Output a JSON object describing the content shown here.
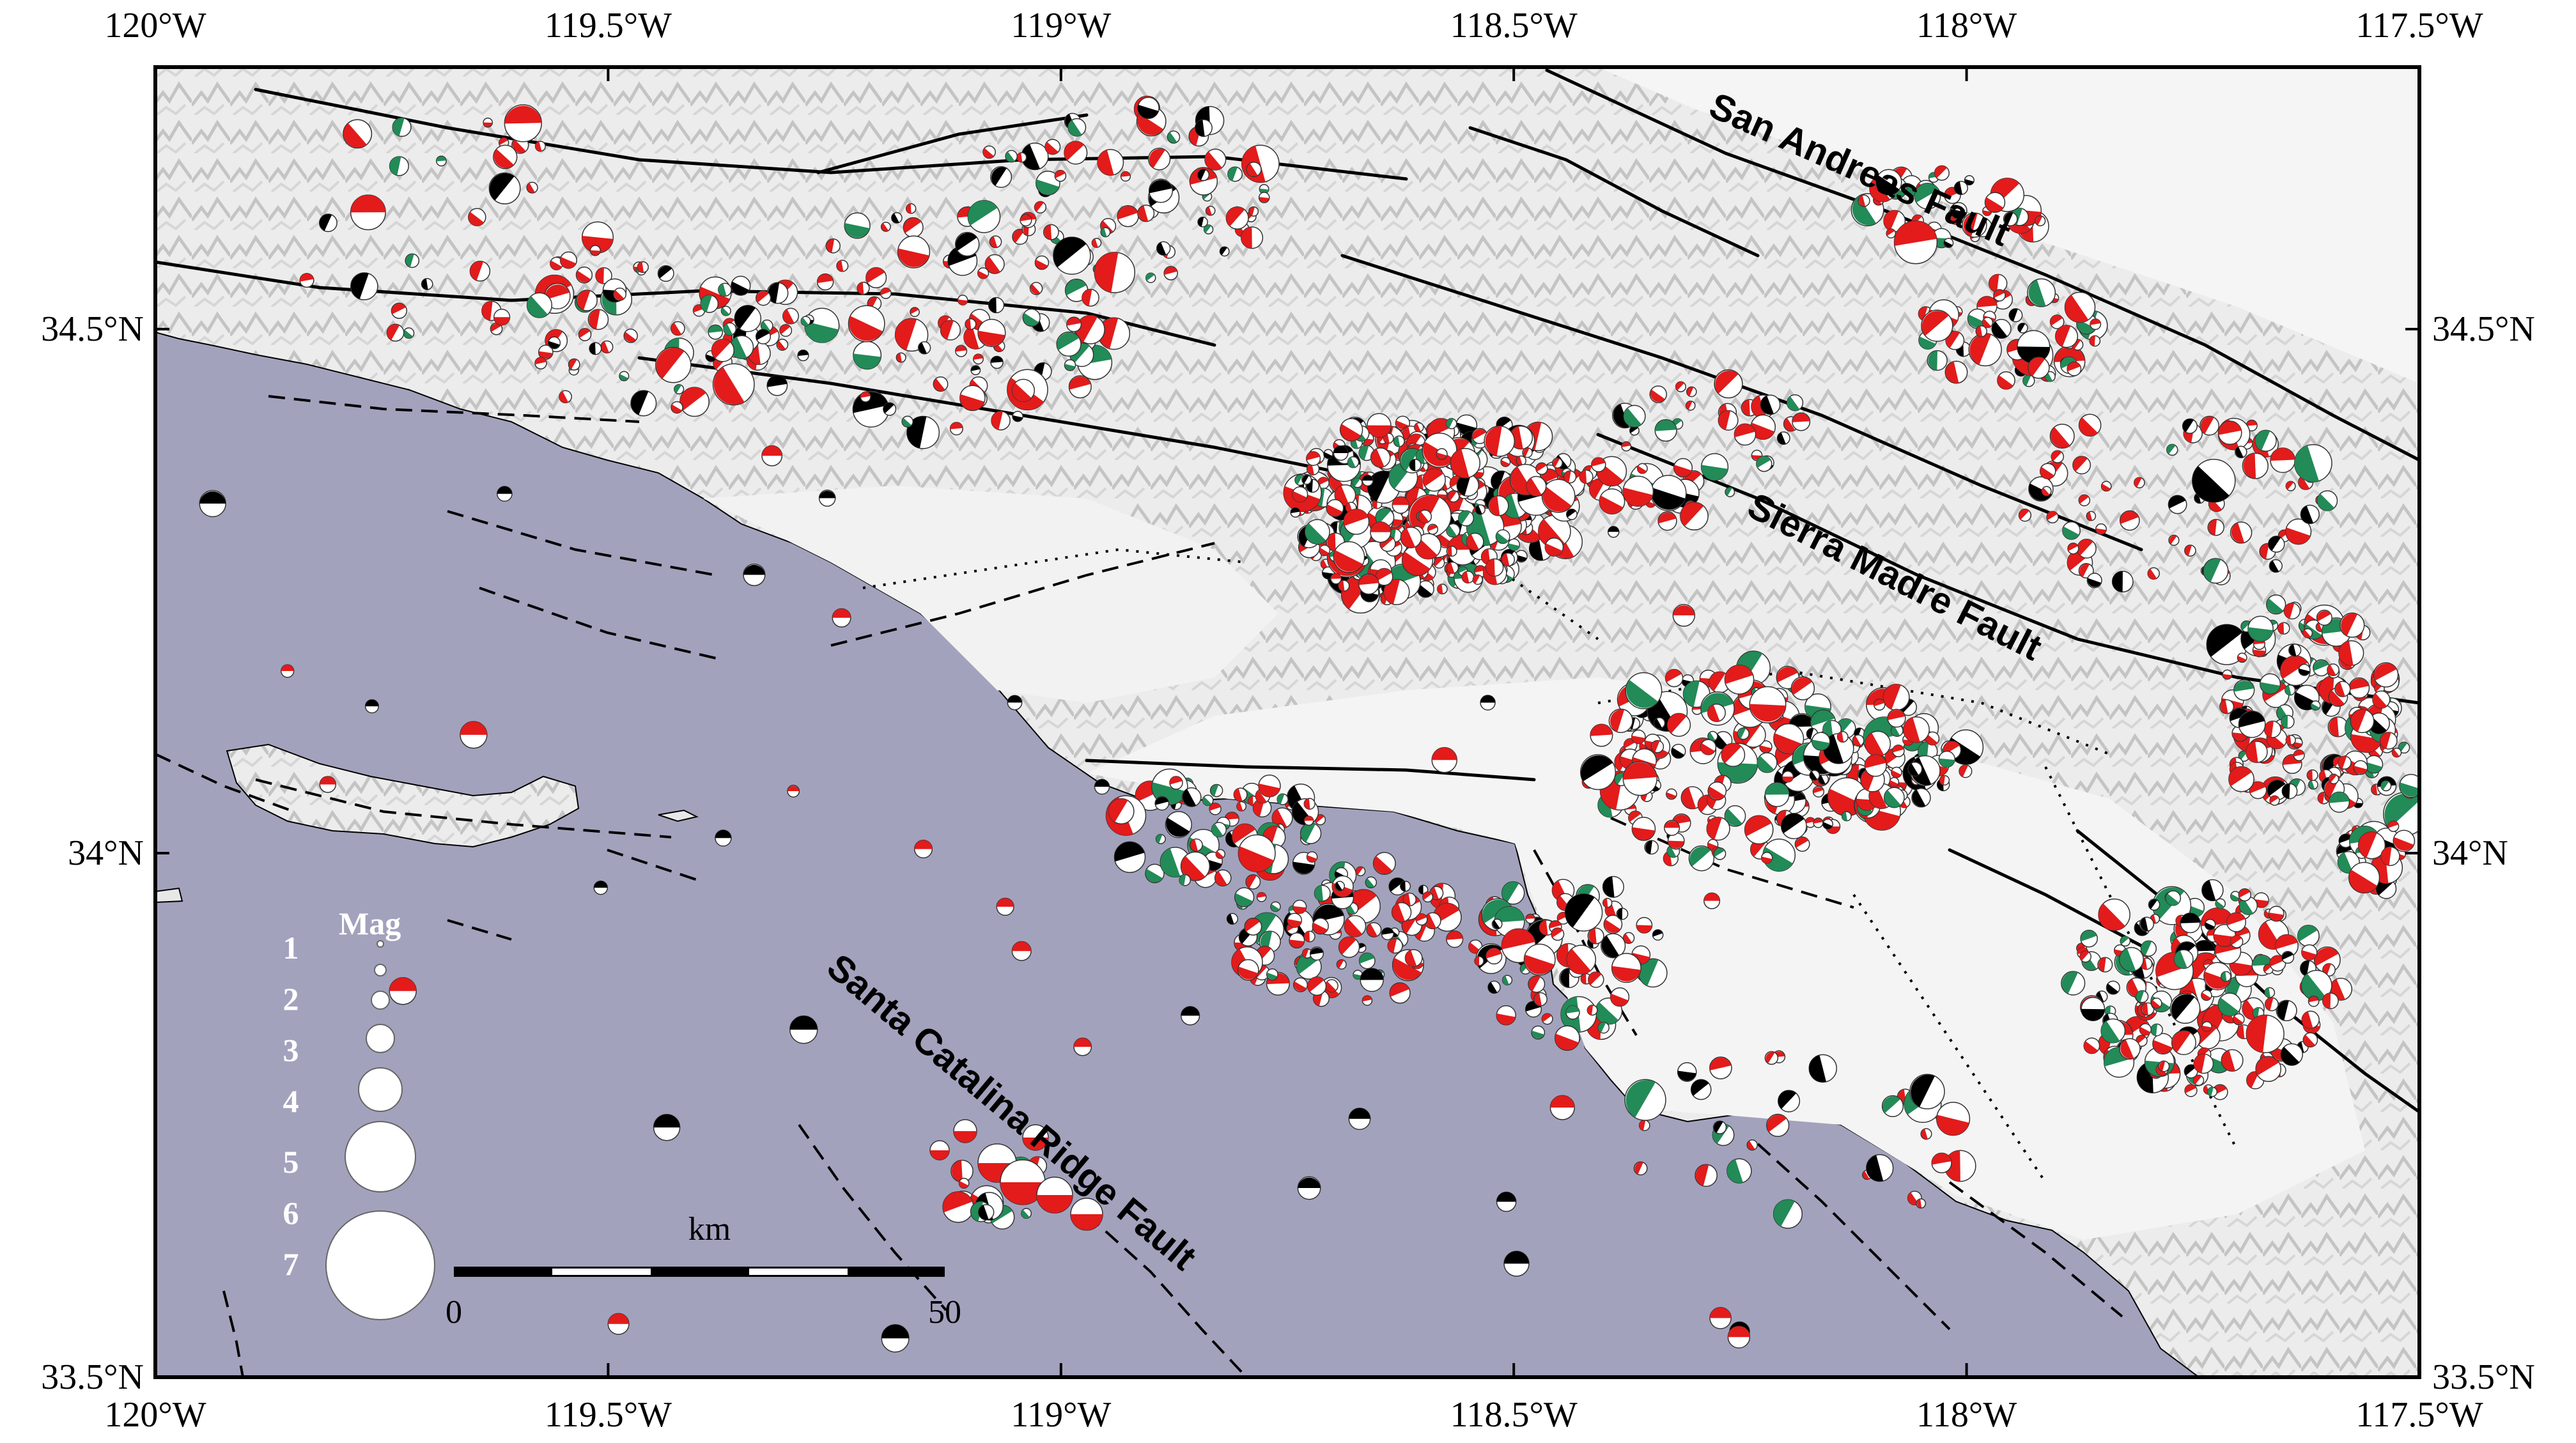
{
  "map": {
    "region": "Southern California (Los Angeles region)",
    "lon_range": [
      -120.0,
      -117.5
    ],
    "lat_range": [
      33.5,
      34.75
    ],
    "colors": {
      "ocean": "#a3a2bd",
      "land": "#efefef",
      "relief_shade": "#c9c9c9",
      "frame": "#000000",
      "fault_line": "#000000",
      "mechanism_red": "#e31b1b",
      "mechanism_green": "#228b57",
      "mechanism_black": "#000000",
      "legend_text": "#ffffff"
    },
    "x_ticks": [
      {
        "lon": -120.0,
        "label": "120°W"
      },
      {
        "lon": -119.5,
        "label": "119.5°W"
      },
      {
        "lon": -119.0,
        "label": "119°W"
      },
      {
        "lon": -118.5,
        "label": "118.5°W"
      },
      {
        "lon": -118.0,
        "label": "118°W"
      },
      {
        "lon": -117.5,
        "label": "117.5°W"
      }
    ],
    "y_ticks": [
      {
        "lat": 34.5,
        "label": "34.5°N"
      },
      {
        "lat": 34.0,
        "label": "34°N"
      },
      {
        "lat": 33.5,
        "label": "33.5°N"
      }
    ],
    "fault_labels": [
      {
        "name": "san-andreas",
        "text": "San Andreas Fault"
      },
      {
        "name": "sierra-madre",
        "text": "Sierra Madre Fault"
      },
      {
        "name": "santa-catalina",
        "text": "Santa Catalina Ridge Fault"
      }
    ],
    "legend": {
      "title": "Mag",
      "magnitudes": [
        "1",
        "2",
        "3",
        "4",
        "5",
        "6",
        "7"
      ]
    },
    "scale_bar": {
      "unit": "km",
      "start": "0",
      "end": "50"
    }
  }
}
